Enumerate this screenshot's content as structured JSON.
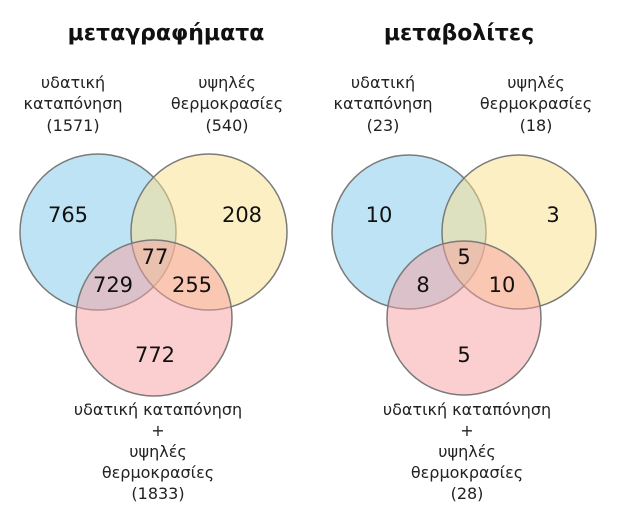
{
  "colors": {
    "set_a": "#7ec8ea",
    "set_b": "#fbe08a",
    "set_c": "#f8a0a0",
    "outline": "#7a7a7a"
  },
  "diagrams": [
    {
      "title": "μεταγραφήματα",
      "set_a": {
        "line1": "υδατική",
        "line2": "καταπόνηση",
        "count": "(1571)"
      },
      "set_b": {
        "line1": "υψηλές",
        "line2": "θερμοκρασίες",
        "count": "(540)"
      },
      "set_c": {
        "line1": "υδατική καταπόνηση",
        "line2": "+",
        "line3": "υψηλές",
        "line4": "θερμοκρασίες",
        "count": "(1833)"
      },
      "regions": {
        "a_only": "765",
        "b_only": "208",
        "abc": "77",
        "ac": "729",
        "bc": "255",
        "c_only": "772"
      }
    },
    {
      "title": "μεταβολίτες",
      "set_a": {
        "line1": "υδατική",
        "line2": "καταπόνηση",
        "count": "(23)"
      },
      "set_b": {
        "line1": "υψηλές",
        "line2": "θερμοκρασίες",
        "count": "(18)"
      },
      "set_c": {
        "line1": "υδατική καταπόνηση",
        "line2": "+",
        "line3": "υψηλές",
        "line4": "θερμοκρασίες",
        "count": "(28)"
      },
      "regions": {
        "a_only": "10",
        "b_only": "3",
        "abc": "5",
        "ac": "8",
        "bc": "10",
        "c_only": "5"
      }
    }
  ]
}
